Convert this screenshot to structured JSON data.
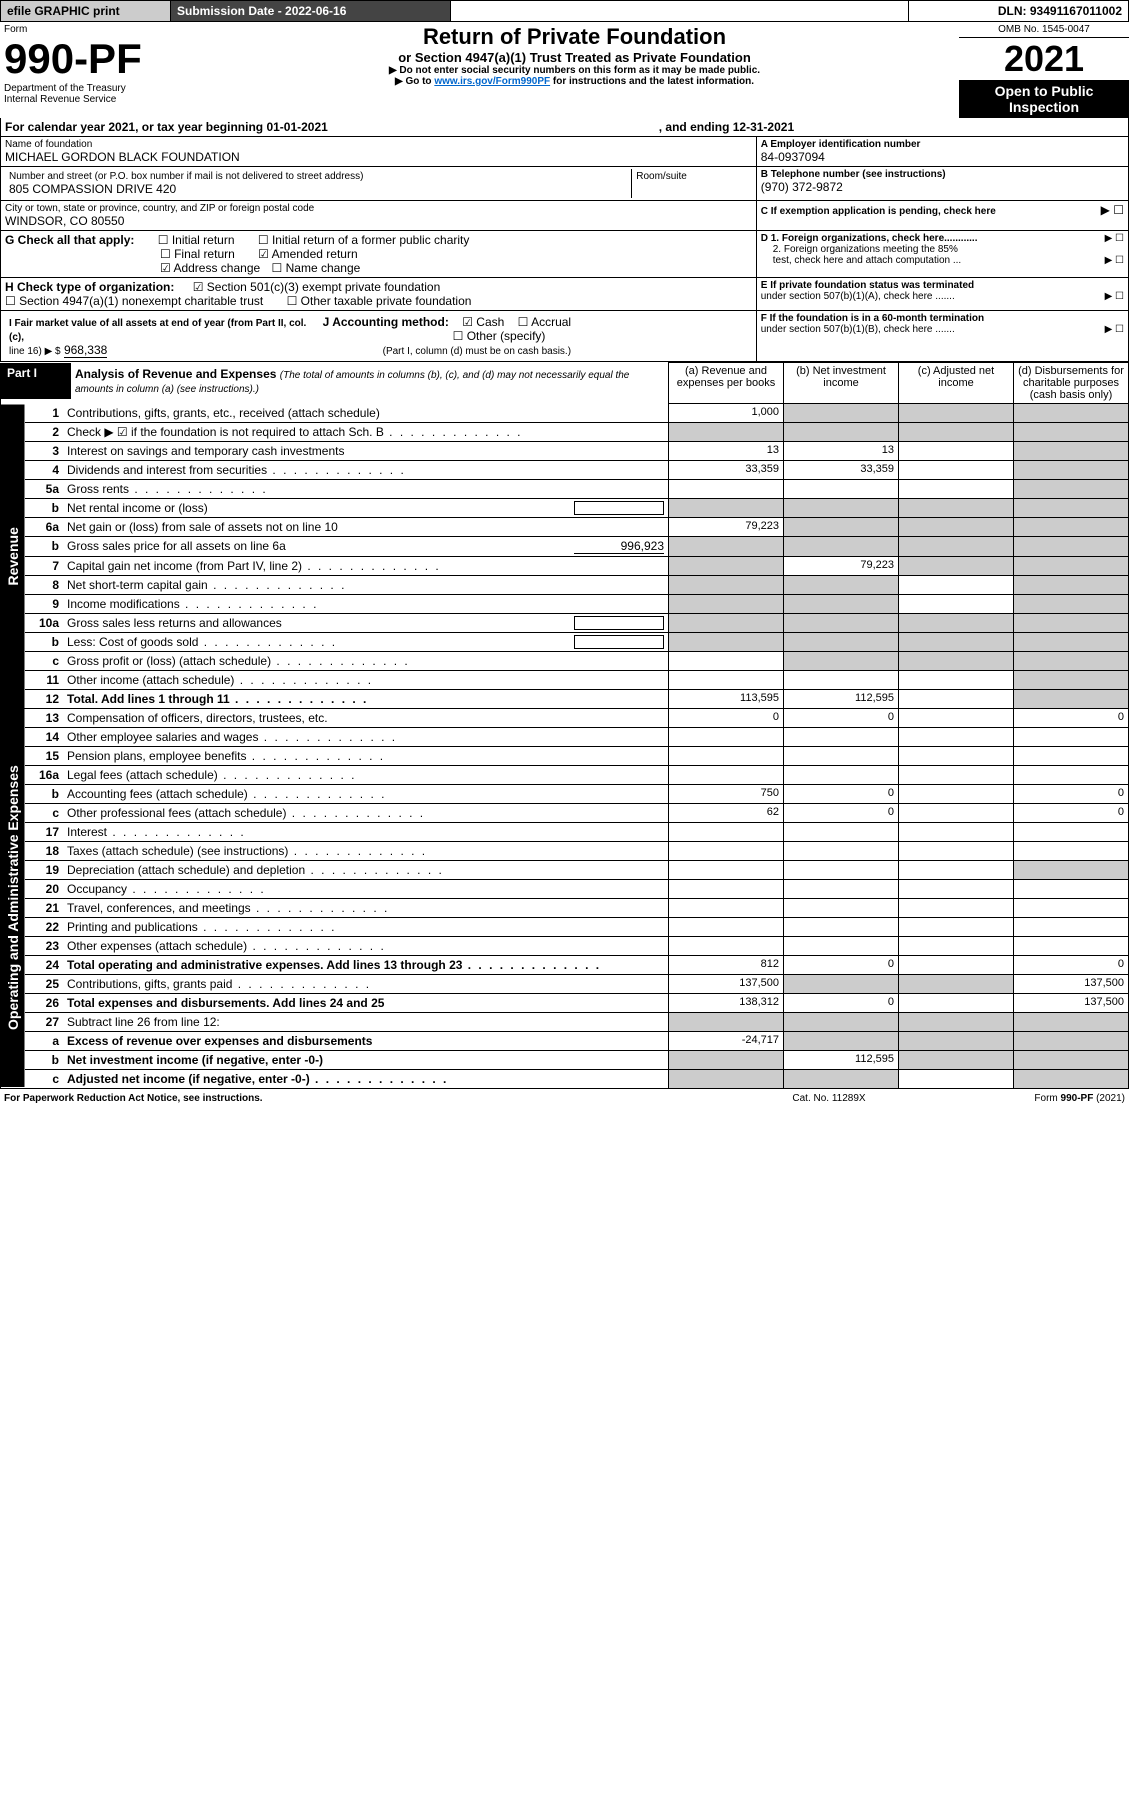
{
  "topbar": {
    "efile": "efile GRAPHIC print",
    "sub_label": "Submission Date - 2022-06-16",
    "dln": "DLN: 93491167011002"
  },
  "header": {
    "form_word": "Form",
    "form_no": "990-PF",
    "dept": "Department of the Treasury",
    "irs": "Internal Revenue Service",
    "title": "Return of Private Foundation",
    "subtitle": "or Section 4947(a)(1) Trust Treated as Private Foundation",
    "warn1": "▶ Do not enter social security numbers on this form as it may be made public.",
    "warn2_pre": "▶ Go to ",
    "warn2_link": "www.irs.gov/Form990PF",
    "warn2_post": " for instructions and the latest information.",
    "omb": "OMB No. 1545-0047",
    "year": "2021",
    "open": "Open to Public Inspection"
  },
  "cal": {
    "text": "For calendar year 2021, or tax year beginning 01-01-2021",
    "end": ", and ending 12-31-2021"
  },
  "name": {
    "lbl": "Name of foundation",
    "val": "MICHAEL GORDON BLACK FOUNDATION"
  },
  "ein": {
    "lbl": "A Employer identification number",
    "val": "84-0937094"
  },
  "addr": {
    "lbl": "Number and street (or P.O. box number if mail is not delivered to street address)",
    "val": "805 COMPASSION DRIVE 420",
    "room": "Room/suite"
  },
  "tel": {
    "lbl": "B Telephone number (see instructions)",
    "val": "(970) 372-9872"
  },
  "city": {
    "lbl": "City or town, state or province, country, and ZIP or foreign postal code",
    "val": "WINDSOR, CO  80550"
  },
  "c": "C If exemption application is pending, check here",
  "g": {
    "lbl": "G Check all that apply:",
    "o1": "Initial return",
    "o2": "Initial return of a former public charity",
    "o3": "Final return",
    "o4": "Amended return",
    "o5": "Address change",
    "o6": "Name change"
  },
  "d": {
    "d1": "D 1. Foreign organizations, check here............",
    "d2a": "2. Foreign organizations meeting the 85%",
    "d2b": "test, check here and attach computation ..."
  },
  "h": {
    "lbl": "H Check type of organization:",
    "o1": "Section 501(c)(3) exempt private foundation",
    "o2": "Section 4947(a)(1) nonexempt charitable trust",
    "o3": "Other taxable private foundation"
  },
  "e": {
    "e1": "E If private foundation status was terminated",
    "e2": "under section 507(b)(1)(A), check here ......."
  },
  "i": {
    "lbl": "I Fair market value of all assets at end of year (from Part II, col. (c),",
    "line": "line 16) ▶ $",
    "val": "968,338"
  },
  "j": {
    "lbl": "J Accounting method:",
    "o1": "Cash",
    "o2": "Accrual",
    "o3": "Other (specify)",
    "note": "(Part I, column (d) must be on cash basis.)"
  },
  "f": {
    "f1": "F If the foundation is in a 60-month termination",
    "f2": "under section 507(b)(1)(B), check here ......."
  },
  "part1": {
    "lbl": "Part I",
    "title": "Analysis of Revenue and Expenses",
    "sub": " (The total of amounts in columns (b), (c), and (d) may not necessarily equal the amounts in column (a) (see instructions).)",
    "cols": {
      "a": "(a) Revenue and expenses per books",
      "b": "(b) Net investment income",
      "c": "(c) Adjusted net income",
      "d": "(d) Disbursements for charitable purposes (cash basis only)"
    }
  },
  "side": {
    "rev": "Revenue",
    "ops": "Operating and Administrative Expenses"
  },
  "rows": [
    {
      "n": "1",
      "t": "Contributions, gifts, grants, etc., received (attach schedule)",
      "a": "1,000",
      "b": "",
      "c": "",
      "d": "",
      "gray_bcd": true
    },
    {
      "n": "2",
      "t": "Check ▶ ☑ if the foundation is not required to attach Sch. B",
      "dots": true,
      "a": "",
      "b": "",
      "c": "",
      "d": "",
      "gray_all": true
    },
    {
      "n": "3",
      "t": "Interest on savings and temporary cash investments",
      "a": "13",
      "b": "13",
      "c": "",
      "d": "",
      "gray_d": true
    },
    {
      "n": "4",
      "t": "Dividends and interest from securities",
      "dots": true,
      "a": "33,359",
      "b": "33,359",
      "c": "",
      "d": "",
      "gray_d": true
    },
    {
      "n": "5a",
      "t": "Gross rents",
      "dots": true,
      "a": "",
      "b": "",
      "c": "",
      "d": "",
      "gray_d": true
    },
    {
      "n": "b",
      "t": "Net rental income or (loss)",
      "a": "",
      "b": "",
      "c": "",
      "d": "",
      "gray_all": true,
      "inline": true
    },
    {
      "n": "6a",
      "t": "Net gain or (loss) from sale of assets not on line 10",
      "a": "79,223",
      "b": "",
      "c": "",
      "d": "",
      "gray_bcd": true
    },
    {
      "n": "b",
      "t": "Gross sales price for all assets on line 6a",
      "inline": true,
      "inlineval": "996,923",
      "a": "",
      "b": "",
      "c": "",
      "d": "",
      "gray_all": true
    },
    {
      "n": "7",
      "t": "Capital gain net income (from Part IV, line 2)",
      "dots": true,
      "a": "",
      "b": "79,223",
      "c": "",
      "d": "",
      "gray_a": true,
      "gray_cd": true
    },
    {
      "n": "8",
      "t": "Net short-term capital gain",
      "dots": true,
      "a": "",
      "b": "",
      "c": "",
      "d": "",
      "gray_ab": true,
      "gray_d": true
    },
    {
      "n": "9",
      "t": "Income modifications",
      "dots": true,
      "a": "",
      "b": "",
      "c": "",
      "d": "",
      "gray_ab": true,
      "gray_d": true
    },
    {
      "n": "10a",
      "t": "Gross sales less returns and allowances",
      "inline": true,
      "a": "",
      "b": "",
      "c": "",
      "d": "",
      "gray_all": true
    },
    {
      "n": "b",
      "t": "Less: Cost of goods sold",
      "dots": true,
      "inline": true,
      "a": "",
      "b": "",
      "c": "",
      "d": "",
      "gray_all": true
    },
    {
      "n": "c",
      "t": "Gross profit or (loss) (attach schedule)",
      "dots": true,
      "a": "",
      "b": "",
      "c": "",
      "d": "",
      "gray_bcd": true,
      "gray_b": false
    },
    {
      "n": "11",
      "t": "Other income (attach schedule)",
      "dots": true,
      "a": "",
      "b": "",
      "c": "",
      "d": "",
      "gray_d": true
    },
    {
      "n": "12",
      "t": "Total. Add lines 1 through 11",
      "dots": true,
      "bold": true,
      "a": "113,595",
      "b": "112,595",
      "c": "",
      "d": "",
      "gray_d": true
    },
    {
      "n": "13",
      "t": "Compensation of officers, directors, trustees, etc.",
      "a": "0",
      "b": "0",
      "c": "",
      "d": "0"
    },
    {
      "n": "14",
      "t": "Other employee salaries and wages",
      "dots": true,
      "a": "",
      "b": "",
      "c": "",
      "d": ""
    },
    {
      "n": "15",
      "t": "Pension plans, employee benefits",
      "dots": true,
      "a": "",
      "b": "",
      "c": "",
      "d": ""
    },
    {
      "n": "16a",
      "t": "Legal fees (attach schedule)",
      "dots": true,
      "a": "",
      "b": "",
      "c": "",
      "d": ""
    },
    {
      "n": "b",
      "t": "Accounting fees (attach schedule)",
      "dots": true,
      "a": "750",
      "b": "0",
      "c": "",
      "d": "0"
    },
    {
      "n": "c",
      "t": "Other professional fees (attach schedule)",
      "dots": true,
      "a": "62",
      "b": "0",
      "c": "",
      "d": "0"
    },
    {
      "n": "17",
      "t": "Interest",
      "dots": true,
      "a": "",
      "b": "",
      "c": "",
      "d": ""
    },
    {
      "n": "18",
      "t": "Taxes (attach schedule) (see instructions)",
      "dots": true,
      "a": "",
      "b": "",
      "c": "",
      "d": ""
    },
    {
      "n": "19",
      "t": "Depreciation (attach schedule) and depletion",
      "dots": true,
      "a": "",
      "b": "",
      "c": "",
      "d": "",
      "gray_d": true
    },
    {
      "n": "20",
      "t": "Occupancy",
      "dots": true,
      "a": "",
      "b": "",
      "c": "",
      "d": ""
    },
    {
      "n": "21",
      "t": "Travel, conferences, and meetings",
      "dots": true,
      "a": "",
      "b": "",
      "c": "",
      "d": ""
    },
    {
      "n": "22",
      "t": "Printing and publications",
      "dots": true,
      "a": "",
      "b": "",
      "c": "",
      "d": ""
    },
    {
      "n": "23",
      "t": "Other expenses (attach schedule)",
      "dots": true,
      "a": "",
      "b": "",
      "c": "",
      "d": ""
    },
    {
      "n": "24",
      "t": "Total operating and administrative expenses. Add lines 13 through 23",
      "dots": true,
      "bold": true,
      "a": "812",
      "b": "0",
      "c": "",
      "d": "0"
    },
    {
      "n": "25",
      "t": "Contributions, gifts, grants paid",
      "dots": true,
      "a": "137,500",
      "b": "",
      "c": "",
      "d": "137,500",
      "gray_bc": true
    },
    {
      "n": "26",
      "t": "Total expenses and disbursements. Add lines 24 and 25",
      "bold": true,
      "a": "138,312",
      "b": "0",
      "c": "",
      "d": "137,500"
    },
    {
      "n": "27",
      "t": "Subtract line 26 from line 12:",
      "a": "",
      "b": "",
      "c": "",
      "d": "",
      "gray_all": true
    },
    {
      "n": "a",
      "t": "Excess of revenue over expenses and disbursements",
      "bold": true,
      "a": "-24,717",
      "b": "",
      "c": "",
      "d": "",
      "gray_bcd": true
    },
    {
      "n": "b",
      "t": "Net investment income (if negative, enter -0-)",
      "bold": true,
      "a": "",
      "b": "112,595",
      "c": "",
      "d": "",
      "gray_a": true,
      "gray_cd": true
    },
    {
      "n": "c",
      "t": "Adjusted net income (if negative, enter -0-)",
      "dots": true,
      "bold": true,
      "a": "",
      "b": "",
      "c": "",
      "d": "",
      "gray_a": true,
      "gray_b": true,
      "gray_d": true
    }
  ],
  "footer": {
    "left": "For Paperwork Reduction Act Notice, see instructions.",
    "mid": "Cat. No. 11289X",
    "right": "Form 990-PF (2021)"
  }
}
